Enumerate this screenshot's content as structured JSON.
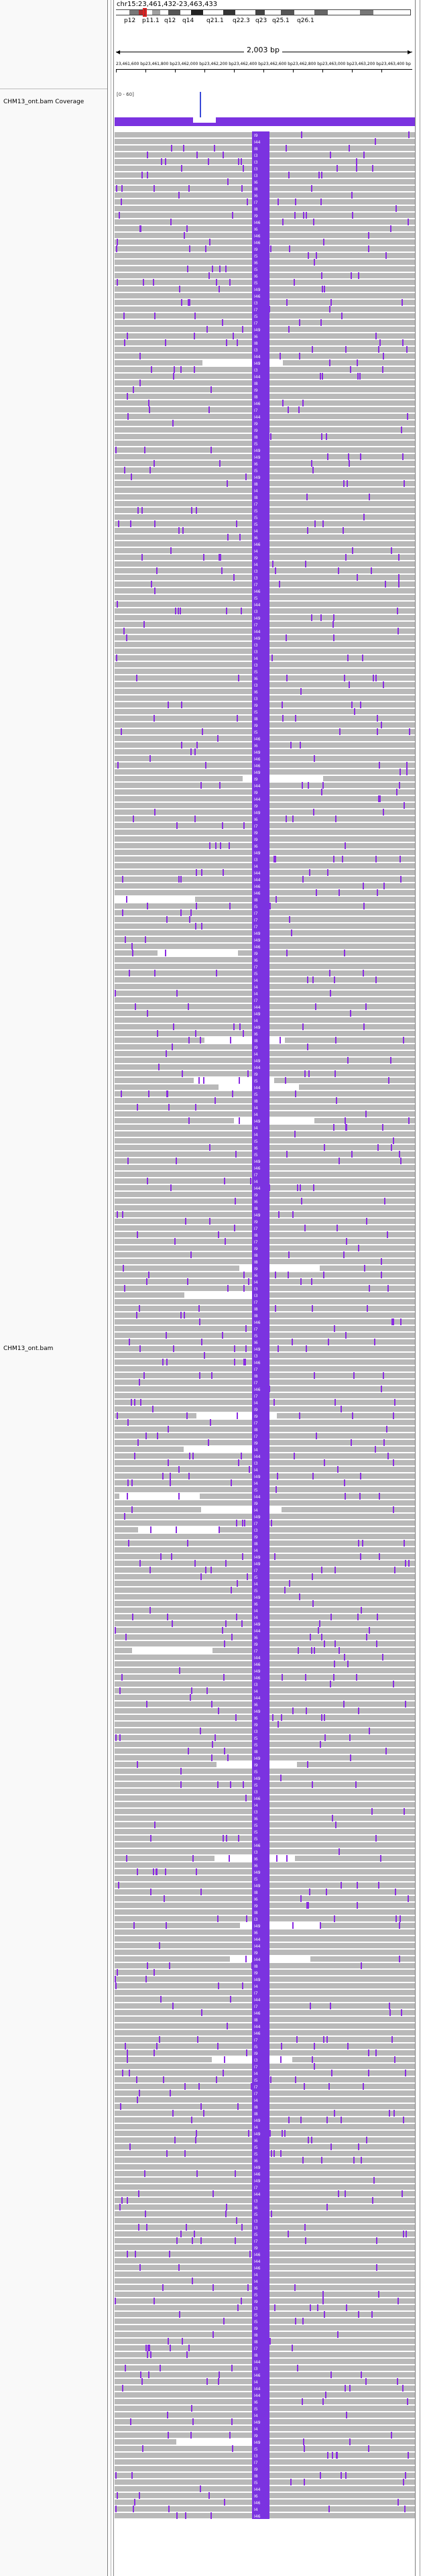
{
  "header": {
    "locus": "chr15:23,461,432-23,463,433",
    "span_label": "2,003 bp",
    "bands": [
      "p12",
      "p11.1",
      "q12",
      "q14",
      "q21.1",
      "q22.3",
      "q23",
      "q25.1",
      "q26.1"
    ],
    "ruler_labels": [
      "23,461,600 bp",
      "23,461,800 bp",
      "23,462,000 bp",
      "23,462,200 bp",
      "23,462,400 bp",
      "23,462,600 bp",
      "23,462,800 bp",
      "23,463,000 bp",
      "23,463,200 bp",
      "23,463,400 bp"
    ]
  },
  "tracks": {
    "coverage_name": "CHM13_ont.bam Coverage",
    "coverage_range": "[0 - 60]",
    "alignment_name": "CHM13_ont.bam"
  },
  "colors": {
    "read": "#b9b9b9",
    "insertion": "#7b33e0",
    "mismatch": "#8a2be2",
    "coverage": "#7b33e0"
  },
  "insertion_labels": [
    "I4",
    "I5",
    "I8",
    "I3",
    "I6",
    "I7",
    "I9",
    "I44",
    "I46",
    "I49"
  ]
}
